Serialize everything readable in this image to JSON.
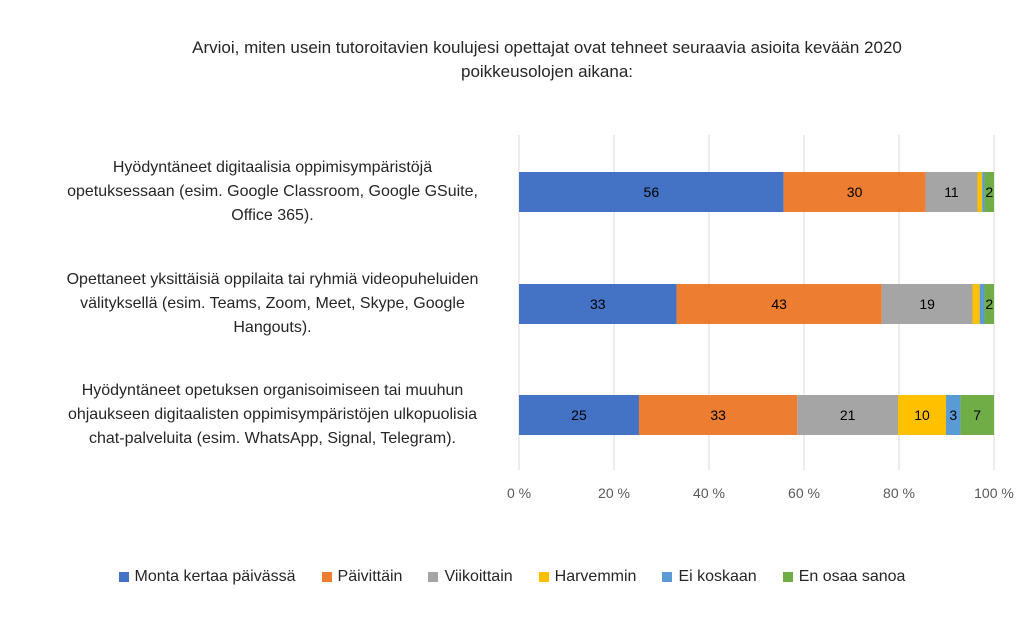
{
  "chart_data": {
    "type": "bar",
    "orientation": "horizontal",
    "stacked": "percent",
    "title": "Arvioi, miten usein tutoroitavien koulujesi opettajat ovat tehneet seuraavia asioita kevään 2020 poikkeusolojen aikana:",
    "title_lines": [
      "Arvioi, miten usein tutoroitavien koulujesi opettajat ovat tehneet seuraavia asioita kevään 2020",
      "poikkeusolojen aikana:"
    ],
    "categories": [
      "Hyödyntäneet digitaalisia oppimisympäristöjä opetuksessaan (esim. Google Classroom, Google GSuite, Office 365).",
      "Opettaneet yksittäisiä oppilaita tai ryhmiä videopuheluiden välityksellä (esim. Teams, Zoom, Meet, Skype, Google Hangouts).",
      "Hyödyntäneet opetuksen organisoimiseen tai muuhun ohjaukseen digitaalisten oppimisympäristöjen ulkopuolisia chat-palveluita (esim. WhatsApp, Signal, Telegram)."
    ],
    "category_lines": [
      [
        "Hyödyntäneet digitaalisia oppimisympäristöjä",
        "opetuksessaan (esim. Google Classroom, Google GSuite,",
        "Office 365)."
      ],
      [
        "Opettaneet yksittäisiä oppilaita tai ryhmiä videopuheluiden",
        "välityksellä (esim. Teams, Zoom, Meet, Skype, Google",
        "Hangouts)."
      ],
      [
        "Hyödyntäneet opetuksen organisoimiseen tai muuhun",
        "ohjaukseen digitaalisten oppimisympäristöjen ulkopuolisia",
        "chat-palveluita (esim. WhatsApp, Signal, Telegram)."
      ]
    ],
    "series": [
      {
        "name": "Monta kertaa päivässä",
        "color": "#4472C4",
        "values": [
          56,
          33,
          25
        ],
        "labels": [
          "56",
          "33",
          "25"
        ]
      },
      {
        "name": "Päivittäin",
        "color": "#ED7D31",
        "values": [
          30,
          43,
          33
        ],
        "labels": [
          "30",
          "43",
          "33"
        ]
      },
      {
        "name": "Viikoittain",
        "color": "#A5A5A5",
        "values": [
          11,
          19,
          21
        ],
        "labels": [
          "11",
          "19",
          "21"
        ]
      },
      {
        "name": "Harvemmin",
        "color": "#FFC000",
        "values": [
          1,
          1.5,
          10
        ],
        "labels": [
          null,
          null,
          "10"
        ]
      },
      {
        "name": "Ei koskaan",
        "color": "#5B9BD5",
        "values": [
          0.5,
          1,
          3
        ],
        "labels": [
          null,
          null,
          "3"
        ]
      },
      {
        "name": "En osaa sanoa",
        "color": "#70AD47",
        "values": [
          2,
          2,
          7
        ],
        "labels": [
          "2",
          "2",
          "7"
        ]
      }
    ],
    "xlim": [
      0,
      100
    ],
    "xticks": [
      "0 %",
      "20 %",
      "40 %",
      "60 %",
      "80 %",
      "100 %"
    ],
    "grid": "vertical",
    "legend": "bottom"
  }
}
